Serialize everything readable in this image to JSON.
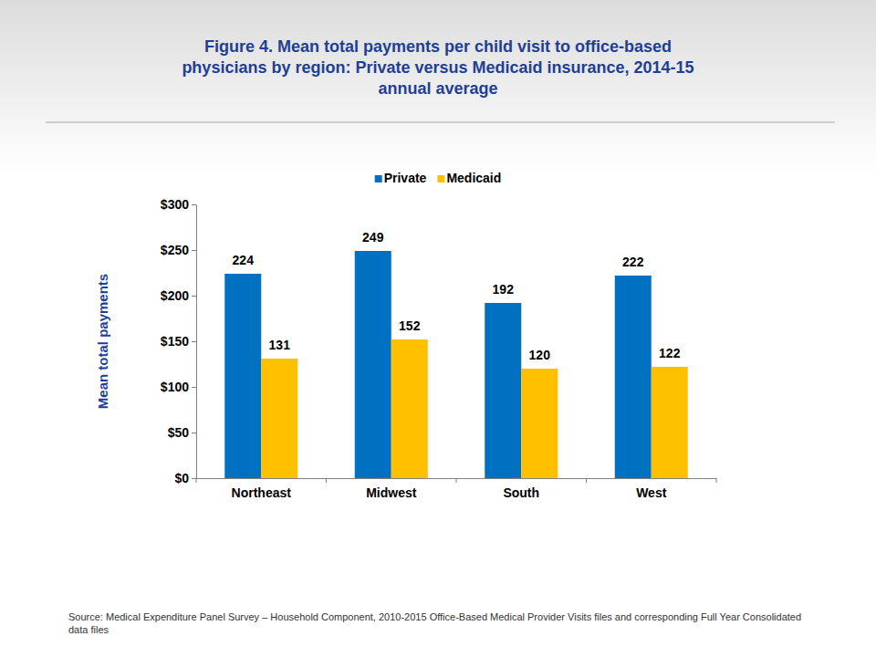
{
  "chart_data": {
    "type": "bar",
    "title": "Figure 4. Mean total payments per child visit to office-based physicians by region: Private versus Medicaid insurance, 2014-15 annual average",
    "ylabel": "Mean total payments",
    "categories": [
      "Northeast",
      "Midwest",
      "South",
      "West"
    ],
    "series": [
      {
        "name": "Private",
        "color": "#0070c0",
        "values": [
          224,
          249,
          192,
          222
        ]
      },
      {
        "name": "Medicaid",
        "color": "#ffc000",
        "values": [
          131,
          152,
          120,
          122
        ]
      }
    ],
    "ylim": [
      0,
      300
    ],
    "yticks": [
      {
        "value": 0,
        "label": "$0"
      },
      {
        "value": 50,
        "label": "$50"
      },
      {
        "value": 100,
        "label": "$100"
      },
      {
        "value": 150,
        "label": "$150"
      },
      {
        "value": 200,
        "label": "$200"
      },
      {
        "value": 250,
        "label": "$250"
      },
      {
        "value": 300,
        "label": "$300"
      }
    ],
    "grid": false,
    "legend": "top",
    "data_labels": true,
    "source": "Source: Medical Expenditure Panel Survey – Household Component, 2010-2015 Office-Based Medical Provider Visits files and corresponding Full Year Consolidated data files"
  }
}
